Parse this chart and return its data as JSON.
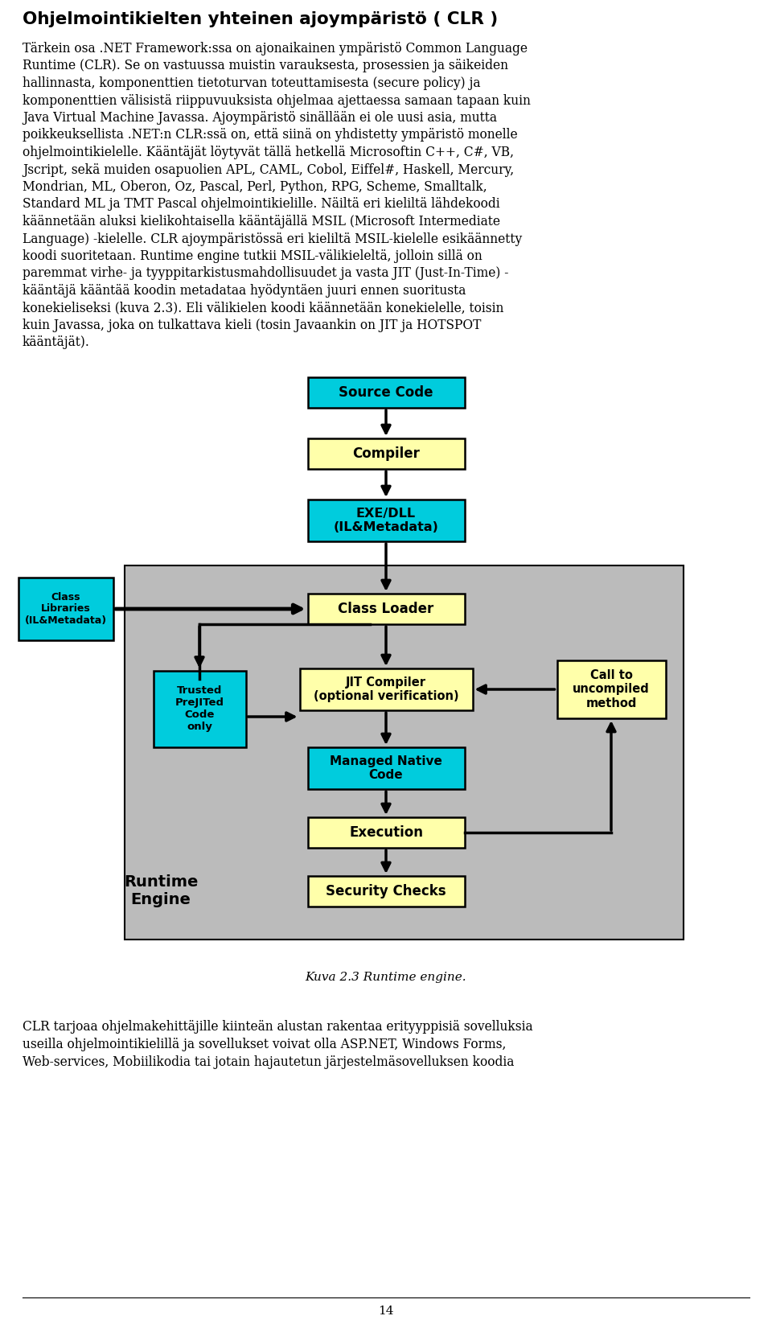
{
  "bg_color": "#ffffff",
  "title": "Ohjelmointikielten yhteinen ajoympäristö ( CLR )",
  "body_lines": [
    "Tärkein osa .NET Framework:ssa on ajonaikainen ympäristö Common Language",
    "Runtime (CLR). Se on vastuussa muistin varauksesta, prosessien ja säikeiden",
    "hallinnasta, komponenttien tietoturvan toteuttamisesta (secure policy) ja",
    "komponenttien välisistä riippuvuuksista ohjelmaa ajettaessa samaan tapaan kuin",
    "Java Virtual Machine Javassa. Ajoympäristö sinällään ei ole uusi asia, mutta",
    "poikkeuksellista .NET:n CLR:ssä on, että siinä on yhdistetty ympäristö monelle",
    "ohjelmointikielelle. Kääntäjät löytyvät tällä hetkellä Microsoftin C++, C#, VB,",
    "Jscript, sekä muiden osapuolien APL, CAML, Cobol, Eiffel#, Haskell, Mercury,",
    "Mondrian, ML, Oberon, Oz, Pascal, Perl, Python, RPG, Scheme, Smalltalk,",
    "Standard ML ja TMT Pascal ohjelmointikielille. Näiltä eri kieliltä lähdekoodi",
    "käännetään aluksi kielikohtaisella kääntäjällä MSIL (Microsoft Intermediate",
    "Language) -kielelle. CLR ajoympäristössä eri kieliltä MSIL-kielelle esikäännetty",
    "koodi suoritetaan. Runtime engine tutkii MSIL-välikieleltä, jolloin sillä on",
    "paremmat virhe- ja tyyppitarkistusmahdollisuudet ja vasta JIT (Just-In-Time) -",
    "kääntäjä kääntää koodin metadataa hyödyntäen juuri ennen suoritusta",
    "konekieliseksi (kuva 2.3). Eli välikielen koodi käännetään konekielelle, toisin",
    "kuin Javassa, joka on tulkattava kieli (tosin Javaankin on JIT ja HOTSPOT",
    "kääntäjät)."
  ],
  "caption": "Kuva 2.3 Runtime engine.",
  "footer_lines": [
    "CLR tarjoaa ohjelmakehittäjille kiinteän alustan rakentaa erityyppisiä sovelluksia",
    "useilla ohjelmointikielillä ja sovellukset voivat olla ASP.NET, Windows Forms,",
    "Web-services, Mobiilikodia tai jotain hajautetun järjestelmäsovelluksen koodia"
  ],
  "page_number": "14",
  "cyan": "#00CCDD",
  "yellow": "#FFFFAA",
  "gray_bg": "#BBBBBB"
}
